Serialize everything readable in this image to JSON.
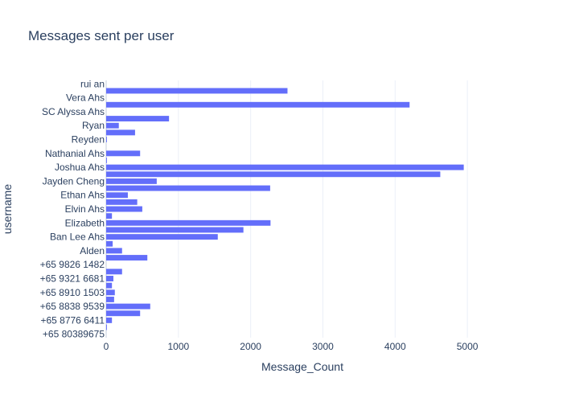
{
  "chart_data": {
    "type": "bar",
    "orientation": "horizontal",
    "title": "Messages sent per user",
    "xlabel": "Message_Count",
    "ylabel": "username",
    "xlim": [
      0,
      5600
    ],
    "x_ticks": [
      0,
      1000,
      2000,
      3000,
      4000,
      5000
    ],
    "x_tick_labels": [
      "0",
      "1000",
      "2000",
      "3000",
      "4000",
      "5000"
    ],
    "categories": [
      "+65 80389675",
      "",
      "+65 8776 6411",
      "",
      "+65 8838 9539",
      "",
      "+65 8910 1503",
      "",
      "+65 9321 6681",
      "",
      "+65 9826 1482",
      "",
      "Alden",
      "",
      "Ban Lee Ahs",
      "",
      "Elizabeth",
      "",
      "Elvin Ahs",
      "",
      "Ethan Ahs",
      "",
      "Jayden Cheng",
      "",
      "Joshua Ahs",
      "",
      "Nathanial Ahs",
      "",
      "Reyden",
      "",
      "Ryan",
      "",
      "SC Alyssa Ahs",
      "",
      "Vera Ahs",
      "",
      "rui an"
    ],
    "values": [
      0,
      10,
      80,
      470,
      610,
      110,
      120,
      80,
      100,
      220,
      0,
      570,
      220,
      90,
      1545,
      1900,
      2275,
      80,
      500,
      430,
      300,
      2270,
      700,
      4625,
      4950,
      10,
      470,
      0,
      10,
      400,
      175,
      870,
      0,
      4200,
      0,
      2510,
      0
    ],
    "color": "#636efa",
    "background": "#ffffff",
    "grid": true,
    "legend": false
  }
}
